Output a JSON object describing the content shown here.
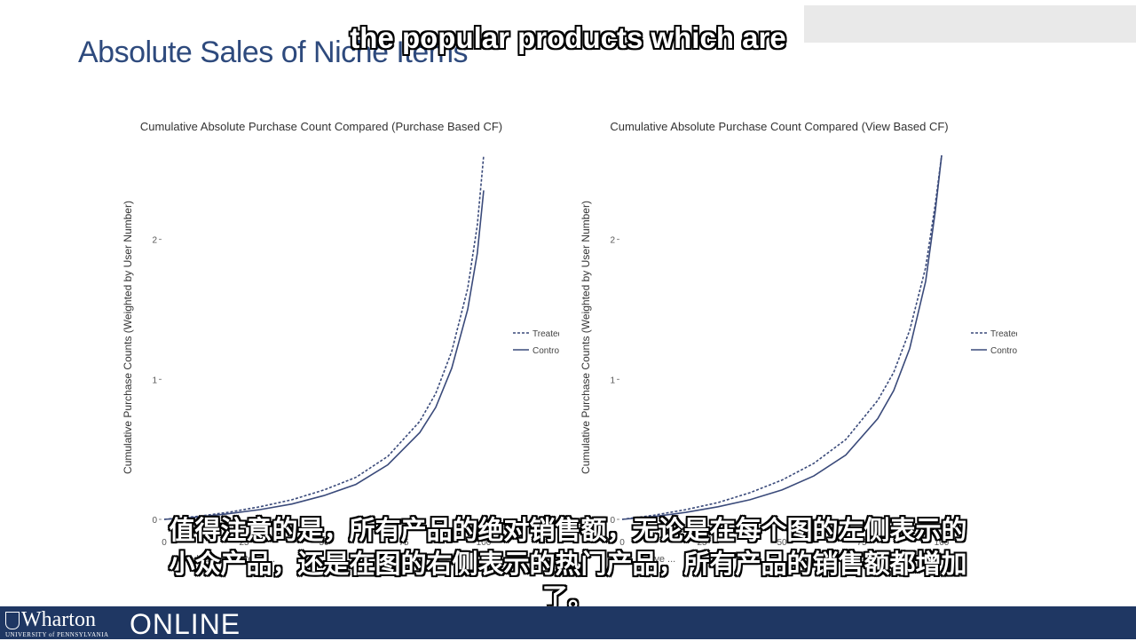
{
  "slide": {
    "title": "Absolute Sales of Niche Items"
  },
  "captions": {
    "top": "the popular products which are",
    "bottom_lines": [
      "值得注意的是，所有产品的绝对销售额，无论是在每个图的左侧表示的",
      "小众产品，还是在图的右侧表示的热门产品，所有产品的销售额都增加",
      "了。"
    ]
  },
  "footer": {
    "logo_word": "Wharton",
    "logo_sub": "UNIVERSITY of PENNSYLVANIA",
    "online": "ONLINE",
    "background": "#1f3763"
  },
  "colors": {
    "title": "#2e4a7d",
    "treated": "#3a4a7a",
    "control": "#3a4a7a"
  },
  "chart_data": [
    {
      "type": "line",
      "title": "Cumulative Absolute Purchase Count Compared (Purchase Based CF)",
      "xlabel": "Cumulative ... Categor...",
      "ylabel": "Cumulative Purchase Counts (Weighted by User Number)",
      "xlim": [
        0,
        100
      ],
      "ylim": [
        0,
        2.6
      ],
      "x_ticks": [
        "0",
        "25",
        "50",
        "75",
        "100"
      ],
      "y_ticks": [
        "0",
        "1",
        "2"
      ],
      "grid": false,
      "legend_position": "right",
      "x": [
        0,
        10,
        20,
        30,
        40,
        50,
        60,
        70,
        80,
        85,
        90,
        95,
        98,
        100
      ],
      "series": [
        {
          "name": "Treated",
          "style": "dashed",
          "values": [
            0,
            0.02,
            0.05,
            0.09,
            0.14,
            0.21,
            0.3,
            0.45,
            0.7,
            0.9,
            1.2,
            1.65,
            2.1,
            2.6
          ]
        },
        {
          "name": "Control",
          "style": "solid",
          "values": [
            0,
            0.015,
            0.04,
            0.07,
            0.11,
            0.17,
            0.25,
            0.39,
            0.62,
            0.8,
            1.08,
            1.5,
            1.9,
            2.35
          ]
        }
      ]
    },
    {
      "type": "line",
      "title": "Cumulative Absolute Purchase Count Compared (View Based CF)",
      "xlabel": "...ulative ...",
      "ylabel": "Cumulative Purchase Counts (Weighted by User Number)",
      "xlim": [
        0,
        100
      ],
      "ylim": [
        0,
        2.6
      ],
      "x_ticks": [
        "0",
        "25",
        "50",
        "75",
        "100"
      ],
      "y_ticks": [
        "0",
        "1",
        "2"
      ],
      "grid": false,
      "legend_position": "right",
      "x": [
        0,
        10,
        20,
        30,
        40,
        50,
        60,
        70,
        80,
        85,
        90,
        95,
        98,
        100
      ],
      "series": [
        {
          "name": "Treated",
          "style": "dashed",
          "values": [
            0,
            0.03,
            0.07,
            0.12,
            0.19,
            0.28,
            0.4,
            0.57,
            0.85,
            1.05,
            1.35,
            1.8,
            2.25,
            2.6
          ]
        },
        {
          "name": "Control",
          "style": "solid",
          "values": [
            0,
            0.02,
            0.05,
            0.09,
            0.14,
            0.21,
            0.31,
            0.46,
            0.72,
            0.92,
            1.22,
            1.7,
            2.2,
            2.6
          ]
        }
      ]
    }
  ]
}
